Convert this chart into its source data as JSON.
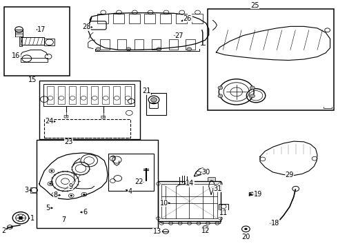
{
  "bg": "#ffffff",
  "lc": "black",
  "lw_main": 0.8,
  "lw_thin": 0.5,
  "label_fs": 7.0,
  "boxes": {
    "b15": [
      0.01,
      0.695,
      0.195,
      0.28
    ],
    "b23": [
      0.115,
      0.44,
      0.3,
      0.235
    ],
    "b_ll": [
      0.108,
      0.08,
      0.36,
      0.355
    ],
    "b4": [
      0.32,
      0.23,
      0.135,
      0.15
    ],
    "b21": [
      0.432,
      0.535,
      0.06,
      0.09
    ],
    "b25": [
      0.615,
      0.555,
      0.375,
      0.41
    ]
  },
  "labels": {
    "1": [
      0.075,
      0.115,
      "←",
      0.06,
      0.115
    ],
    "2": [
      0.052,
      0.075,
      "↑",
      0.052,
      0.09
    ],
    "3": [
      0.09,
      0.228,
      "→",
      0.11,
      0.228
    ],
    "4": [
      0.365,
      0.237,
      "←",
      0.345,
      0.255
    ],
    "5": [
      0.143,
      0.16,
      "→",
      0.163,
      0.16
    ],
    "6": [
      0.24,
      0.143,
      "←",
      0.225,
      0.15
    ],
    "7": [
      0.187,
      0.13,
      "↑",
      0.187,
      0.148
    ],
    "8": [
      0.168,
      0.212,
      "→",
      0.185,
      0.21
    ],
    "9": [
      0.208,
      0.222,
      "↓",
      0.208,
      0.208
    ],
    "10": [
      0.49,
      0.183,
      "→",
      0.51,
      0.183
    ],
    "11": [
      0.66,
      0.168,
      "↑",
      0.66,
      0.183
    ],
    "12": [
      0.608,
      0.08,
      "↑",
      0.608,
      0.095
    ],
    "13": [
      0.49,
      0.06,
      "→",
      0.508,
      0.068
    ],
    "14": [
      0.55,
      0.255,
      "←",
      0.535,
      0.26
    ],
    "15": [
      0.095,
      0.688,
      "↑",
      0.095,
      0.7
    ],
    "16": [
      0.053,
      0.775,
      "→",
      0.07,
      0.775
    ],
    "17": [
      0.118,
      0.885,
      "←",
      0.1,
      0.88
    ],
    "18": [
      0.81,
      0.09,
      "←",
      0.79,
      0.098
    ],
    "19": [
      0.758,
      0.21,
      "←",
      0.74,
      0.215
    ],
    "20": [
      0.73,
      0.062,
      "↑",
      0.73,
      0.078
    ],
    "21": [
      0.43,
      0.63,
      "↓",
      0.455,
      0.622
    ],
    "22": [
      0.432,
      0.255,
      "↑",
      0.432,
      0.27
    ],
    "23": [
      0.202,
      0.453,
      "↑",
      0.202,
      0.445
    ],
    "24": [
      0.155,
      0.516,
      "→",
      0.17,
      0.51
    ],
    "25": [
      0.755,
      0.96,
      "↓",
      0.755,
      0.965
    ],
    "26": [
      0.548,
      0.92,
      "←",
      0.53,
      0.912
    ],
    "27": [
      0.525,
      0.858,
      "←",
      0.505,
      0.858
    ],
    "28": [
      0.26,
      0.9,
      "→",
      0.278,
      0.892
    ],
    "29": [
      0.85,
      0.285,
      "←",
      0.832,
      0.295
    ],
    "30": [
      0.6,
      0.305,
      "←",
      0.585,
      0.3
    ],
    "31": [
      0.634,
      0.233,
      "←",
      0.62,
      0.24
    ]
  }
}
